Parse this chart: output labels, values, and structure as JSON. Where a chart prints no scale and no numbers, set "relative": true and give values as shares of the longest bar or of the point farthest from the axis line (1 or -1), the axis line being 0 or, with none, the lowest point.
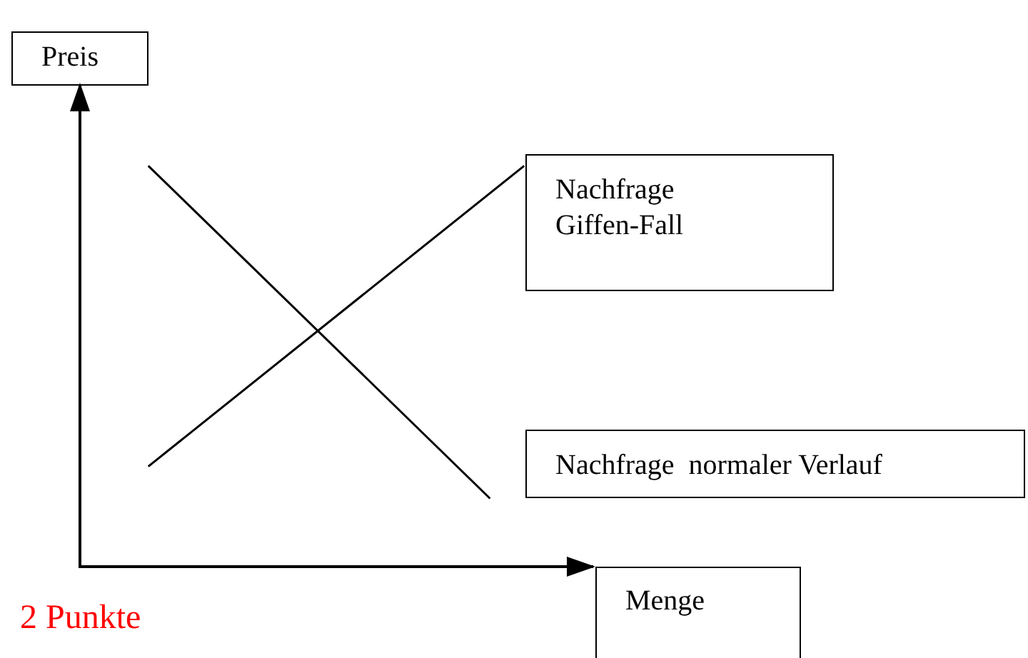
{
  "chart_data": {
    "type": "line",
    "relative": true,
    "xlabel": "Menge",
    "ylabel": "Preis",
    "categories": [
      null,
      null,
      null,
      null,
      null,
      null,
      null,
      null,
      null,
      null,
      null,
      null,
      null,
      null,
      null,
      null
    ],
    "series": [
      {
        "name": "Nachfrage  normaler Verlauf",
        "color": "#000000",
        "values": [
          null,
          null,
          1,
          null,
          null,
          null,
          null,
          null,
          null,
          null,
          null,
          null,
          0.17,
          null,
          null,
          null
        ]
      },
      {
        "name": "Nachfrage Giffen-Fall",
        "color": "#000000",
        "values": [
          null,
          null,
          0.25,
          null,
          null,
          null,
          null,
          null,
          null,
          null,
          null,
          null,
          null,
          1,
          null,
          null
        ]
      }
    ],
    "annotations": [
      "2 Punkte"
    ],
    "grid": false,
    "legend": false,
    "marker": "none",
    "line_style": "solid"
  }
}
